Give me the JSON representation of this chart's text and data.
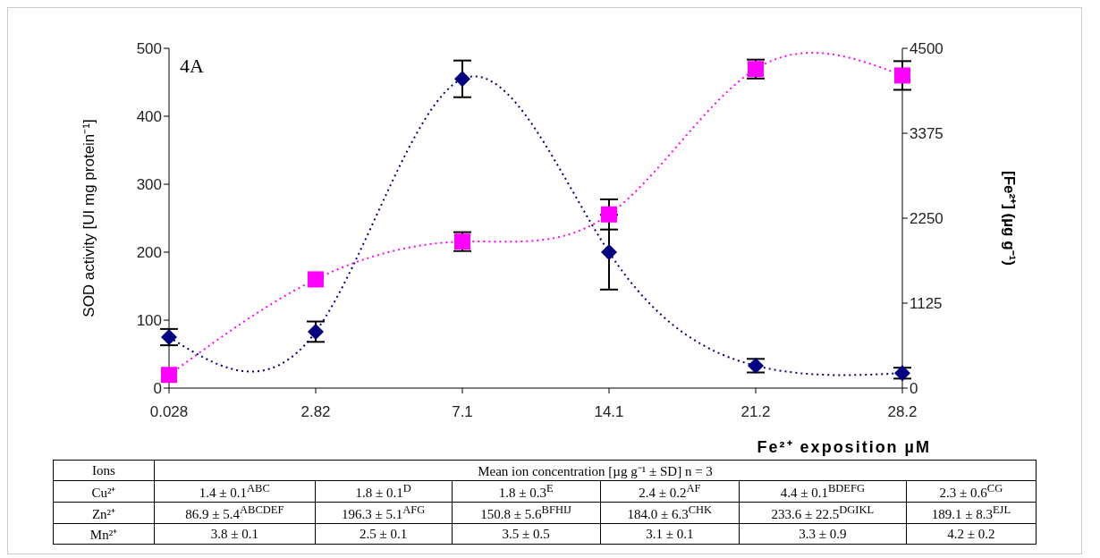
{
  "chart_data": {
    "type": "line",
    "title": "4A",
    "xlabel": "Fe²⁺ exposition µM",
    "ylabel": "SOD activity [UI mg protein⁻¹]",
    "y2label": "[Fe²⁺] (µg g⁻¹)",
    "categories": [
      "0.028",
      "2.82",
      "7.1",
      "14.1",
      "21.2",
      "28.2"
    ],
    "series": [
      {
        "color": "#000080",
        "marker": "diamond",
        "values": [
          75,
          83,
          455,
          200,
          33,
          22
        ],
        "errors": [
          12,
          15,
          27,
          55,
          10,
          8
        ]
      },
      {
        "color": "#ff00ff",
        "marker": "square",
        "axis": "y2",
        "values": [
          175,
          1440,
          1940,
          2300,
          4225,
          4140
        ],
        "errors": [
          null,
          null,
          125,
          200,
          125,
          190
        ]
      }
    ],
    "ylim": [
      0,
      500
    ],
    "yticks": [
      0,
      100,
      200,
      300,
      400,
      500
    ],
    "y2lim": [
      0,
      4500
    ],
    "y2ticks": [
      0,
      1125,
      2250,
      3375,
      4500
    ],
    "grid": false,
    "legend": false,
    "line_style": "dotted",
    "annotations": [
      "Ions",
      "Mean ion concentration [µg g⁻¹ ± SD]  n = 3",
      "Cu²⁺",
      "1.4 ± 0.1$^{ABC}$",
      "1.8 ± 0.1$^{D}$",
      "1.8 ± 0.3$^{E}$",
      "2.4 ± 0.2$^{AF}$",
      "4.4 ± 0.1$^{BDEFG}$",
      "2.3 ± 0.6$^{CG}$",
      "Zn²⁺",
      "86.9 ± 5.4$^{ABCDEF}$",
      "196.3 ± 5.1$^{AFG}$",
      "150.8 ± 5.6$^{BFHIJ}$",
      "184.0 ± 6.3$^{CHK}$",
      "233.6 ± 22.5$^{DGIKL}$",
      "189.1 ± 8.3$^{EJL}$",
      "Mn²⁺",
      "3.8 ± 0.1",
      "2.5 ± 0.1",
      "3.5 ± 0.5",
      "3.1 ± 0.1",
      "3.3 ± 0.9",
      "4.2 ± 0.2"
    ]
  }
}
